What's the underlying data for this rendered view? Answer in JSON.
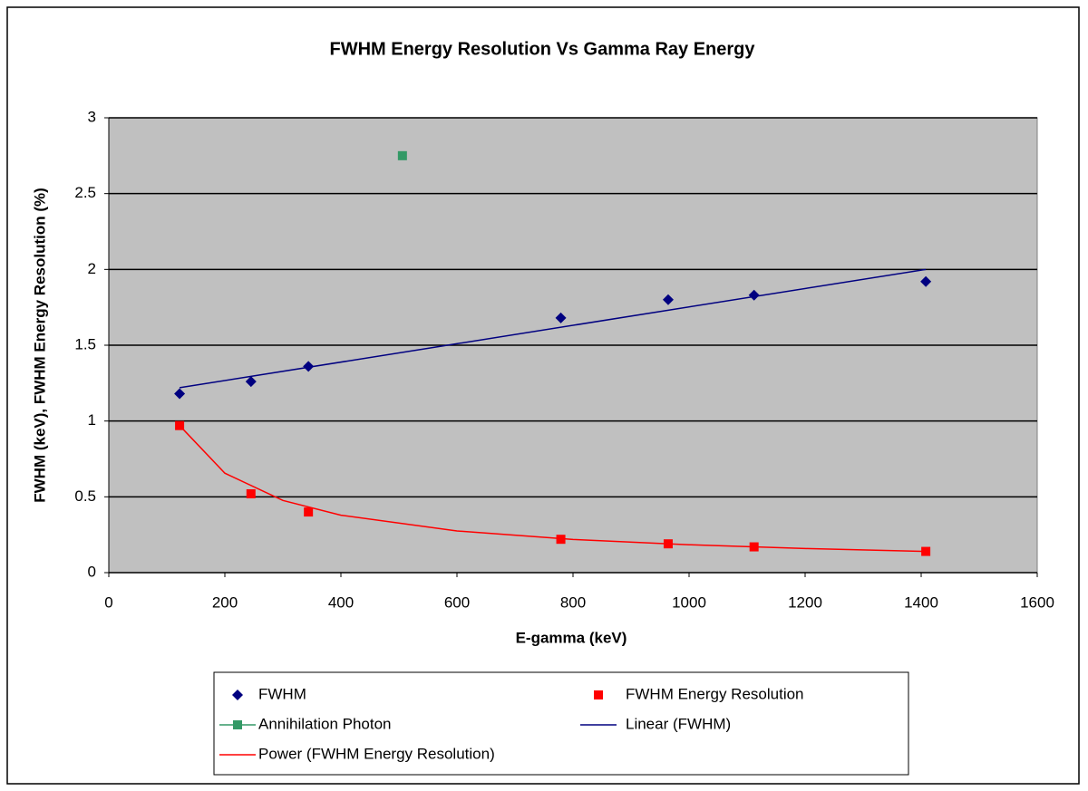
{
  "chart_data": {
    "type": "scatter",
    "title": "FWHM Energy Resolution Vs Gamma Ray Energy",
    "x_label": "E-gamma (keV)",
    "y_label": "FWHM (keV), FWHM Energy Resolution (%)",
    "xlim": [
      0,
      1600
    ],
    "xticks": [
      0,
      200,
      400,
      600,
      800,
      1000,
      1200,
      1400,
      1600
    ],
    "ylim": [
      0,
      3
    ],
    "yticks": [
      0,
      0.5,
      1,
      1.5,
      2,
      2.5,
      3
    ],
    "grid": true,
    "series": [
      {
        "name": "FWHM",
        "color": "#000080",
        "marker": "diamond",
        "line": false,
        "x": [
          122,
          245,
          344,
          779,
          964,
          1112,
          1408
        ],
        "values": [
          1.18,
          1.26,
          1.36,
          1.68,
          1.8,
          1.83,
          1.92
        ]
      },
      {
        "name": "FWHM Energy Resolution",
        "color": "#ff0000",
        "marker": "square",
        "line": false,
        "x": [
          122,
          245,
          344,
          779,
          964,
          1112,
          1408
        ],
        "values": [
          0.97,
          0.52,
          0.4,
          0.22,
          0.19,
          0.17,
          0.14
        ]
      },
      {
        "name": "Annihilation Photon",
        "color": "#339966",
        "marker": "square",
        "line": true,
        "x": [
          506
        ],
        "values": [
          2.75
        ]
      },
      {
        "name": "Linear (FWHM)",
        "color": "#000080",
        "marker": null,
        "line": true,
        "x": [
          122,
          1408
        ],
        "values": [
          1.22,
          2.0
        ]
      },
      {
        "name": "Power (FWHM Energy Resolution)",
        "color": "#ff0000",
        "marker": null,
        "line": true,
        "x": [
          122,
          200,
          300,
          400,
          600,
          800,
          1000,
          1200,
          1408
        ],
        "values": [
          0.97,
          0.656,
          0.476,
          0.379,
          0.275,
          0.219,
          0.184,
          0.159,
          0.14
        ]
      }
    ]
  }
}
